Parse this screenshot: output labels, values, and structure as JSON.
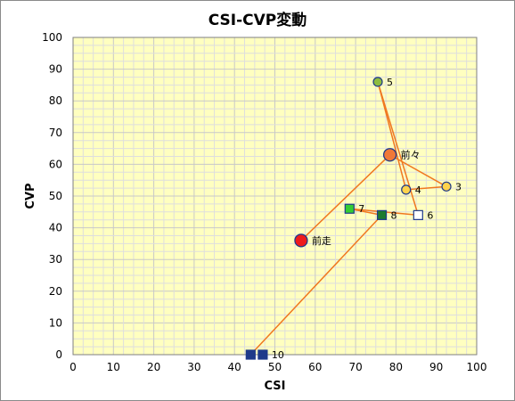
{
  "chart_data": {
    "type": "scatter",
    "title": "CSI-CVP変動",
    "xlabel": "CSI",
    "ylabel": "CVP",
    "xlim": [
      0,
      100
    ],
    "ylim": [
      0,
      100
    ],
    "x_ticks": [
      "0",
      "10",
      "20",
      "30",
      "40",
      "50",
      "60",
      "70",
      "80",
      "90",
      "100"
    ],
    "y_ticks": [
      "0",
      "10",
      "20",
      "30",
      "40",
      "50",
      "60",
      "70",
      "80",
      "90",
      "100"
    ],
    "grid": true,
    "background_color": "#ffffc0",
    "line_color": "#f07820",
    "points": [
      {
        "label": "10",
        "x": 47,
        "y": 0,
        "marker": "square",
        "fill": "#1f3a8a"
      },
      {
        "label": "",
        "x": 44,
        "y": 0,
        "marker": "square",
        "fill": "#1f3a8a"
      },
      {
        "label": "8",
        "x": 76.5,
        "y": 44,
        "marker": "square",
        "fill": "#1f7a2e"
      },
      {
        "label": "7",
        "x": 68.5,
        "y": 46,
        "marker": "square",
        "fill": "#33cc33"
      },
      {
        "label": "6",
        "x": 85.5,
        "y": 44,
        "marker": "square",
        "fill": "#ffffff"
      },
      {
        "label": "5",
        "x": 75.5,
        "y": 86,
        "marker": "circle",
        "fill": "#8fbc3f"
      },
      {
        "label": "4",
        "x": 82.5,
        "y": 52,
        "marker": "circle",
        "fill": "#ffd34d"
      },
      {
        "label": "3",
        "x": 92.5,
        "y": 53,
        "marker": "circle",
        "fill": "#ffd34d"
      },
      {
        "label": "前々",
        "x": 78.5,
        "y": 63,
        "marker": "circle-large",
        "fill": "#f07838"
      },
      {
        "label": "前走",
        "x": 56.5,
        "y": 36,
        "marker": "circle-large",
        "fill": "#ee1c1c"
      }
    ],
    "path_order": [
      1,
      2,
      3,
      4,
      5,
      6,
      7,
      8,
      9
    ]
  }
}
